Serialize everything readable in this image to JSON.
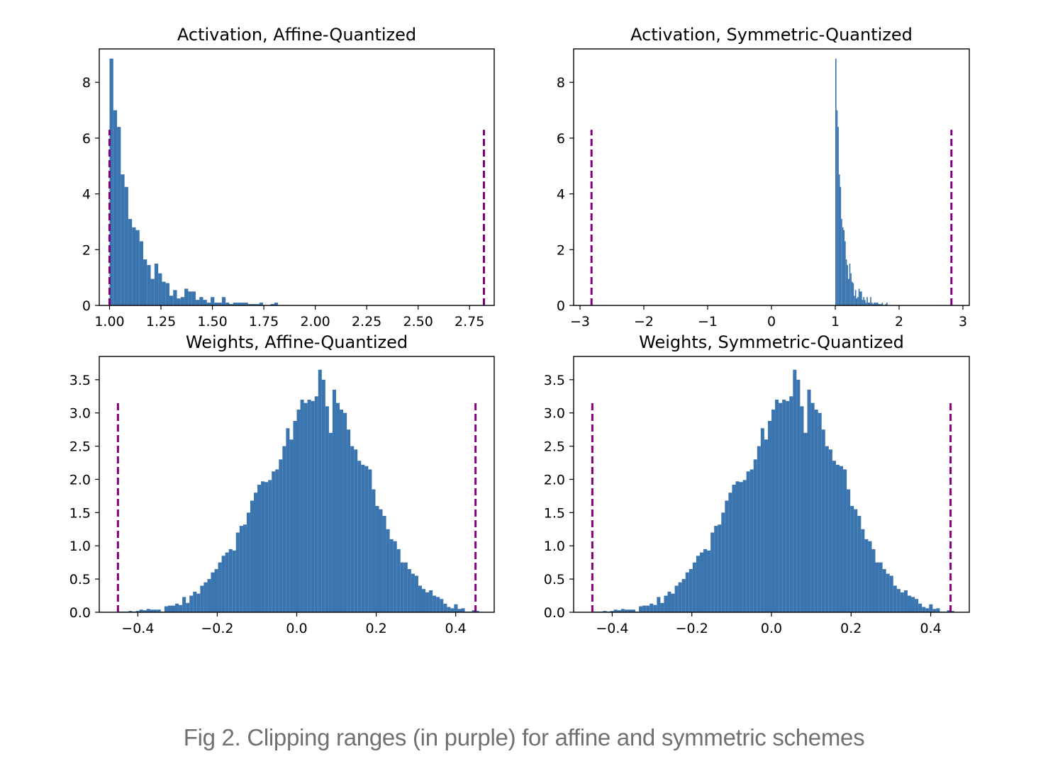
{
  "figure_caption": "Fig 2. Clipping ranges (in purple) for affine and symmetric schemes",
  "colors": {
    "bars": "#3b75af",
    "clip_lines": "#800080",
    "axes": "#000000",
    "caption": "#707070"
  },
  "chart_data": [
    {
      "type": "bar",
      "subtype": "histogram",
      "title": "Activation, Affine-Quantized",
      "xlabel": "",
      "ylabel": "",
      "xlim": [
        0.95,
        2.87
      ],
      "ylim": [
        0,
        9.2
      ],
      "xticks": [
        1.0,
        1.25,
        1.5,
        1.75,
        2.0,
        2.25,
        2.5,
        2.75
      ],
      "xtick_labels": [
        "1.00",
        "1.25",
        "1.50",
        "1.75",
        "2.00",
        "2.25",
        "2.50",
        "2.75"
      ],
      "yticks": [
        0,
        2,
        4,
        6,
        8
      ],
      "ytick_labels": [
        "0",
        "2",
        "4",
        "6",
        "8"
      ],
      "grid": false,
      "clip_range": [
        1.0,
        2.82
      ],
      "clip_line_height": 6.3,
      "bin_start": 1.0,
      "bin_width": 0.0182,
      "values": [
        8.85,
        7.0,
        6.4,
        4.7,
        4.25,
        3.1,
        2.8,
        2.7,
        2.3,
        1.65,
        1.45,
        0.95,
        1.5,
        1.15,
        0.85,
        0.8,
        0.35,
        0.55,
        0.25,
        0.3,
        0.6,
        0.5,
        0.5,
        0.2,
        0.3,
        0.2,
        0.1,
        0.3,
        0.1,
        0.1,
        0.3,
        0.1,
        0.05,
        0.1,
        0.1,
        0.1,
        0.1,
        0.05,
        0.05,
        0.05,
        0.1,
        0.0,
        0.0,
        0.05,
        0.1
      ]
    },
    {
      "type": "bar",
      "subtype": "histogram",
      "title": "Activation, Symmetric-Quantized",
      "xlabel": "",
      "ylabel": "",
      "xlim": [
        -3.1,
        3.1
      ],
      "ylim": [
        0,
        9.2
      ],
      "xticks": [
        -3,
        -2,
        -1,
        0,
        1,
        2,
        3
      ],
      "xtick_labels": [
        "−3",
        "−2",
        "−1",
        "0",
        "1",
        "2",
        "3"
      ],
      "yticks": [
        0,
        2,
        4,
        6,
        8
      ],
      "ytick_labels": [
        "0",
        "2",
        "4",
        "6",
        "8"
      ],
      "grid": false,
      "clip_range": [
        -2.82,
        2.82
      ],
      "clip_line_height": 6.3,
      "bin_start": 1.0,
      "bin_width": 0.0182,
      "values": [
        8.85,
        7.0,
        6.4,
        4.7,
        4.25,
        3.1,
        2.8,
        2.7,
        2.3,
        1.65,
        1.45,
        0.95,
        1.5,
        1.15,
        0.85,
        0.8,
        0.35,
        0.55,
        0.25,
        0.3,
        0.6,
        0.5,
        0.5,
        0.2,
        0.3,
        0.2,
        0.1,
        0.3,
        0.1,
        0.1,
        0.3,
        0.1,
        0.05,
        0.1,
        0.1,
        0.1,
        0.1,
        0.05,
        0.05,
        0.05,
        0.1,
        0.0,
        0.0,
        0.05,
        0.1
      ]
    },
    {
      "type": "bar",
      "subtype": "histogram",
      "title": "Weights, Affine-Quantized",
      "xlabel": "",
      "ylabel": "",
      "xlim": [
        -0.497,
        0.497
      ],
      "ylim": [
        0,
        3.85
      ],
      "xticks": [
        -0.4,
        -0.2,
        0.0,
        0.2,
        0.4
      ],
      "xtick_labels": [
        "−0.4",
        "−0.2",
        "0.0",
        "0.2",
        "0.4"
      ],
      "yticks": [
        0,
        0.5,
        1.0,
        1.5,
        2.0,
        2.5,
        3.0,
        3.5
      ],
      "ytick_labels": [
        "0.0",
        "0.5",
        "1.0",
        "1.5",
        "2.0",
        "2.5",
        "3.0",
        "3.5"
      ],
      "grid": false,
      "clip_range": [
        -0.45,
        0.45
      ],
      "clip_line_height": 3.18,
      "bin_start": -0.45,
      "bin_width": 0.009,
      "values": [
        0.01,
        0.01,
        0.01,
        0.02,
        0.01,
        0.02,
        0.04,
        0.03,
        0.05,
        0.04,
        0.04,
        0.04,
        0.01,
        0.09,
        0.1,
        0.1,
        0.13,
        0.11,
        0.23,
        0.14,
        0.25,
        0.31,
        0.28,
        0.4,
        0.45,
        0.5,
        0.6,
        0.65,
        0.75,
        0.85,
        0.9,
        0.95,
        0.93,
        1.2,
        1.3,
        1.32,
        1.5,
        1.68,
        1.8,
        1.92,
        1.97,
        1.96,
        1.99,
        2.12,
        2.15,
        2.3,
        2.5,
        2.77,
        2.6,
        2.88,
        3.05,
        3.2,
        3.15,
        3.2,
        3.18,
        3.25,
        3.65,
        3.5,
        3.1,
        2.7,
        3.35,
        3.15,
        3.05,
        3.0,
        2.75,
        2.5,
        2.45,
        2.28,
        2.22,
        2.2,
        2.15,
        1.85,
        1.6,
        1.55,
        1.45,
        1.25,
        1.1,
        1.07,
        0.95,
        0.75,
        0.75,
        0.65,
        0.58,
        0.55,
        0.4,
        0.35,
        0.3,
        0.33,
        0.25,
        0.23,
        0.2,
        0.13,
        0.08,
        0.06,
        0.12,
        0.05,
        0.06,
        0.01,
        0.01,
        0.03,
        0.02
      ]
    },
    {
      "type": "bar",
      "subtype": "histogram",
      "title": "Weights, Symmetric-Quantized",
      "xlabel": "",
      "ylabel": "",
      "xlim": [
        -0.497,
        0.497
      ],
      "ylim": [
        0,
        3.85
      ],
      "xticks": [
        -0.4,
        -0.2,
        0.0,
        0.2,
        0.4
      ],
      "xtick_labels": [
        "−0.4",
        "−0.2",
        "0.0",
        "0.2",
        "0.4"
      ],
      "yticks": [
        0,
        0.5,
        1.0,
        1.5,
        2.0,
        2.5,
        3.0,
        3.5
      ],
      "ytick_labels": [
        "0.0",
        "0.5",
        "1.0",
        "1.5",
        "2.0",
        "2.5",
        "3.0",
        "3.5"
      ],
      "grid": false,
      "clip_range": [
        -0.45,
        0.45
      ],
      "clip_line_height": 3.18,
      "bin_start": -0.45,
      "bin_width": 0.009,
      "values": [
        0.01,
        0.01,
        0.01,
        0.02,
        0.01,
        0.02,
        0.04,
        0.03,
        0.05,
        0.04,
        0.04,
        0.04,
        0.01,
        0.09,
        0.1,
        0.1,
        0.13,
        0.11,
        0.23,
        0.14,
        0.25,
        0.31,
        0.28,
        0.4,
        0.45,
        0.5,
        0.6,
        0.65,
        0.75,
        0.85,
        0.9,
        0.95,
        0.93,
        1.2,
        1.3,
        1.32,
        1.5,
        1.68,
        1.8,
        1.92,
        1.97,
        1.96,
        1.99,
        2.12,
        2.15,
        2.3,
        2.5,
        2.77,
        2.6,
        2.88,
        3.05,
        3.2,
        3.15,
        3.2,
        3.18,
        3.25,
        3.65,
        3.5,
        3.1,
        2.7,
        3.35,
        3.15,
        3.05,
        3.0,
        2.75,
        2.5,
        2.45,
        2.28,
        2.22,
        2.2,
        2.15,
        1.85,
        1.6,
        1.55,
        1.45,
        1.25,
        1.1,
        1.07,
        0.95,
        0.75,
        0.75,
        0.65,
        0.58,
        0.55,
        0.4,
        0.35,
        0.3,
        0.33,
        0.25,
        0.23,
        0.2,
        0.13,
        0.08,
        0.06,
        0.12,
        0.05,
        0.06,
        0.01,
        0.01,
        0.03,
        0.02
      ]
    }
  ]
}
